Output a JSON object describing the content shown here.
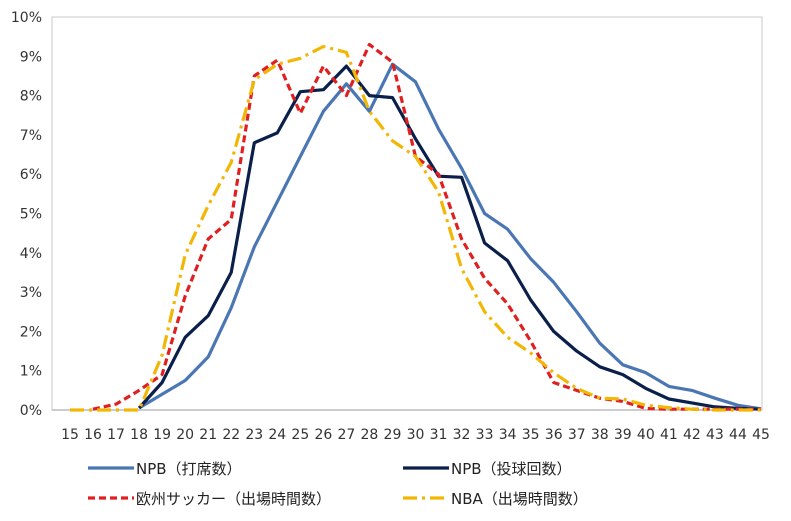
{
  "chart_data": {
    "type": "line",
    "x": [
      15,
      16,
      17,
      18,
      19,
      20,
      21,
      22,
      23,
      24,
      25,
      26,
      27,
      28,
      29,
      30,
      31,
      32,
      33,
      34,
      35,
      36,
      37,
      38,
      39,
      40,
      41,
      42,
      43,
      44,
      45
    ],
    "ylim": [
      0,
      10
    ],
    "yticks": [
      "0%",
      "1%",
      "2%",
      "3%",
      "4%",
      "5%",
      "6%",
      "7%",
      "8%",
      "9%",
      "10%"
    ],
    "grid": false,
    "legend_position": "bottom",
    "series": [
      {
        "name": "NPB（打席数）",
        "color": "#4a77b4",
        "dash": "solid",
        "values": [
          null,
          null,
          null,
          0.05,
          0.4,
          0.75,
          1.35,
          2.6,
          4.15,
          5.3,
          6.45,
          7.6,
          8.3,
          7.6,
          8.8,
          8.35,
          7.15,
          6.15,
          5.0,
          4.6,
          3.85,
          3.25,
          2.5,
          1.7,
          1.15,
          0.95,
          0.6,
          0.5,
          0.3,
          0.12,
          0.03
        ]
      },
      {
        "name": "NPB（投球回数）",
        "color": "#0a1f4a",
        "dash": "solid",
        "values": [
          null,
          null,
          null,
          0.05,
          0.7,
          1.85,
          2.4,
          3.5,
          6.8,
          7.05,
          8.1,
          8.15,
          8.75,
          8.0,
          7.95,
          6.9,
          5.95,
          5.92,
          4.25,
          3.8,
          2.8,
          2.0,
          1.5,
          1.1,
          0.9,
          0.55,
          0.28,
          0.18,
          0.08,
          0.04,
          0.02
        ]
      },
      {
        "name": "欧州サッカー（出場時間数）",
        "color": "#e02020",
        "dash": "dashed",
        "values": [
          null,
          0.02,
          0.15,
          0.5,
          0.9,
          2.9,
          4.35,
          4.85,
          8.5,
          8.9,
          7.55,
          8.75,
          8.0,
          9.3,
          8.85,
          6.45,
          6.0,
          4.35,
          3.35,
          2.7,
          1.75,
          0.7,
          0.5,
          0.3,
          0.22,
          0.04,
          0.02,
          0.02,
          0.02,
          0.02,
          0.02
        ]
      },
      {
        "name": "NBA（出場時間数）",
        "color": "#f2b705",
        "dash": "dashdot",
        "values": [
          0.0,
          0.0,
          0.0,
          0.0,
          1.4,
          3.95,
          5.2,
          6.3,
          8.4,
          8.8,
          8.95,
          9.25,
          9.1,
          7.6,
          6.85,
          6.45,
          5.55,
          3.6,
          2.5,
          1.85,
          1.45,
          0.95,
          0.55,
          0.3,
          0.28,
          0.12,
          0.06,
          0.02,
          0.0,
          0.0,
          0.0
        ]
      }
    ]
  }
}
